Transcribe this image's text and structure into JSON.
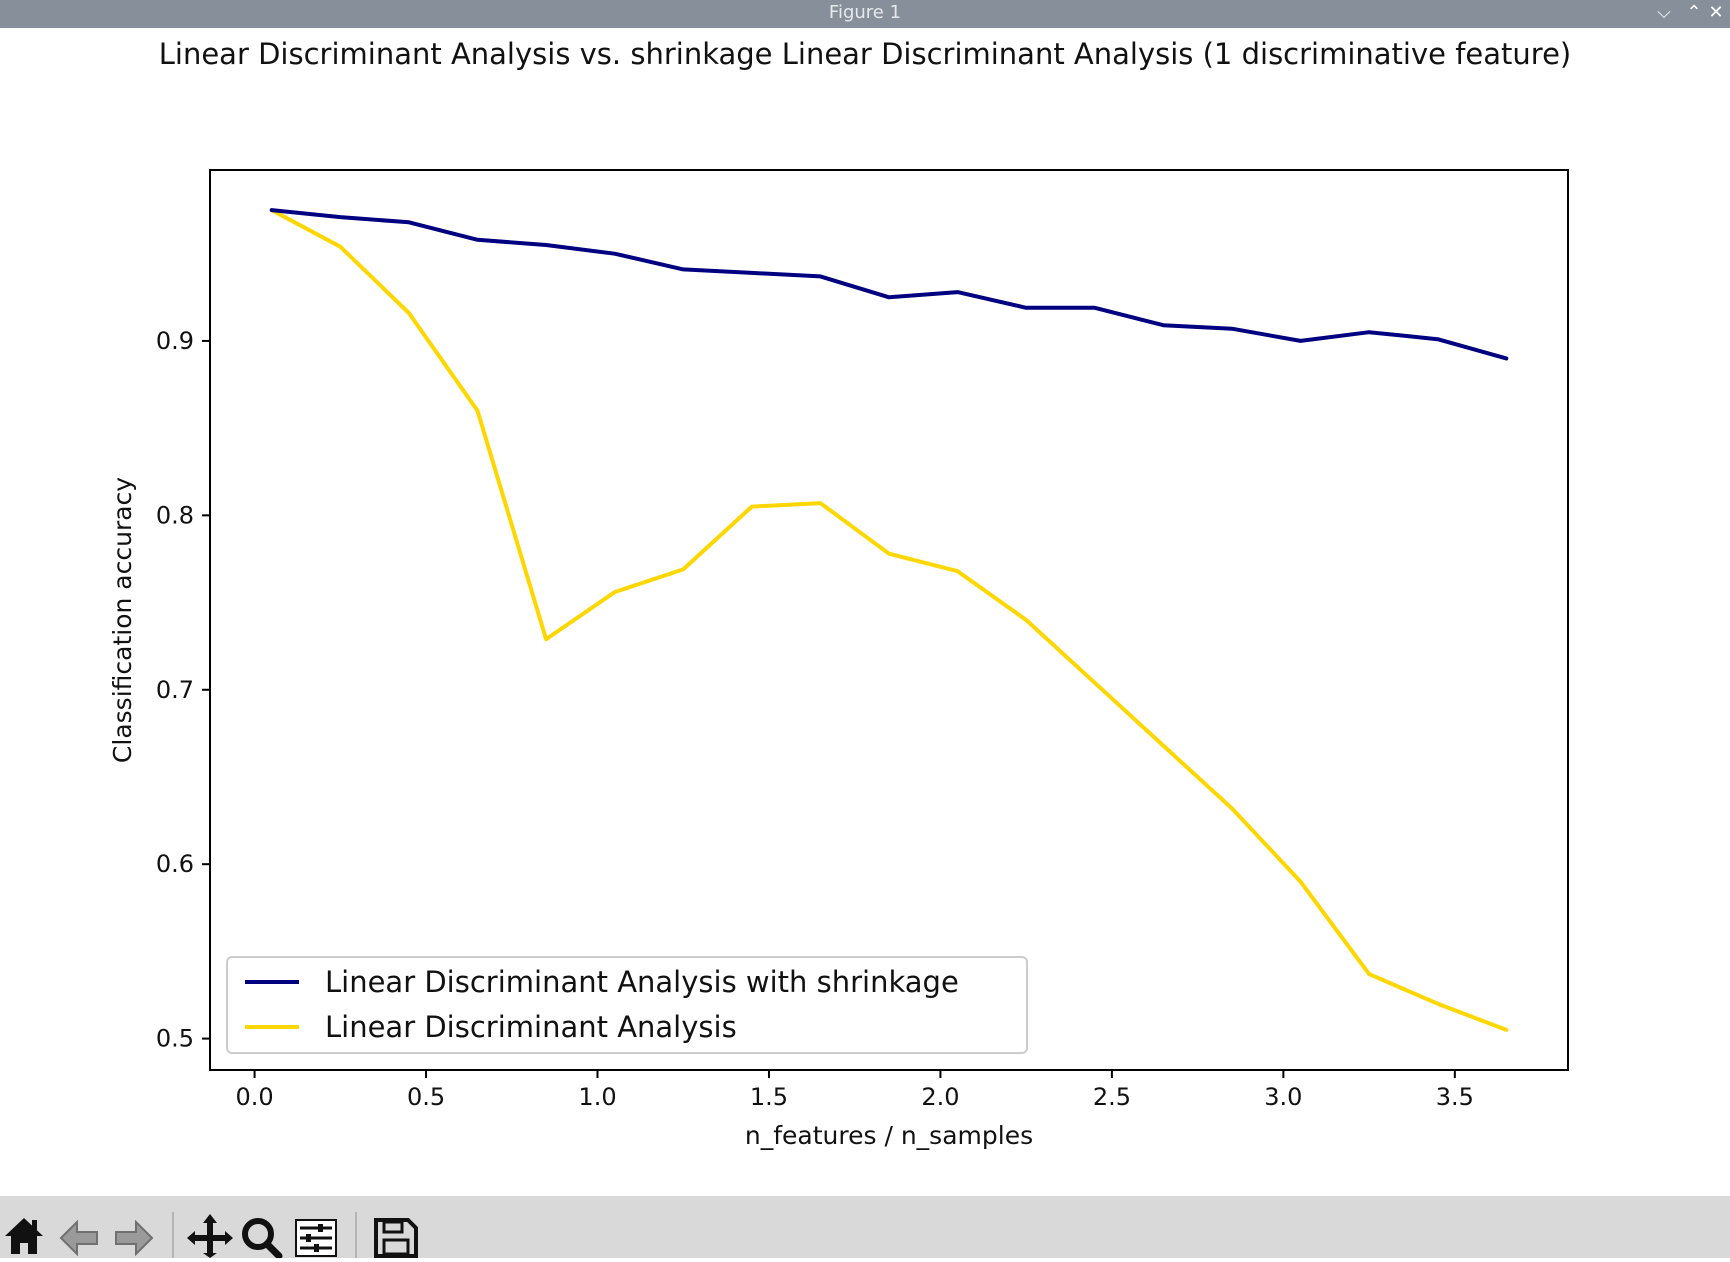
{
  "window": {
    "title": "Figure 1",
    "controls": [
      "minimize",
      "maximize",
      "close"
    ]
  },
  "toolbar": {
    "buttons": [
      {
        "name": "home-button",
        "icon": "home-icon"
      },
      {
        "name": "back-button",
        "icon": "arrow-left-icon"
      },
      {
        "name": "forward-button",
        "icon": "arrow-right-icon"
      },
      {
        "name": "pan-button",
        "icon": "move-icon"
      },
      {
        "name": "zoom-button",
        "icon": "magnifier-icon"
      },
      {
        "name": "configure-subplots-button",
        "icon": "sliders-icon"
      },
      {
        "name": "save-button",
        "icon": "floppy-icon"
      }
    ]
  },
  "chart_data": {
    "type": "line",
    "title": "Linear Discriminant Analysis vs. shrinkage Linear Discriminant Analysis (1 discriminative feature)",
    "xlabel": "n_features / n_samples",
    "ylabel": "Classification accuracy",
    "xlim": [
      -0.13,
      3.83
    ],
    "ylim": [
      0.482,
      0.998
    ],
    "xticks": [
      0.0,
      0.5,
      1.0,
      1.5,
      2.0,
      2.5,
      3.0,
      3.5
    ],
    "xtick_labels": [
      "0.0",
      "0.5",
      "1.0",
      "1.5",
      "2.0",
      "2.5",
      "3.0",
      "3.5"
    ],
    "yticks": [
      0.5,
      0.6,
      0.7,
      0.8,
      0.9
    ],
    "ytick_labels": [
      "0.5",
      "0.6",
      "0.7",
      "0.8",
      "0.9"
    ],
    "grid": false,
    "legend_position": "lower-left",
    "x": [
      0.05,
      0.25,
      0.45,
      0.65,
      0.85,
      1.05,
      1.25,
      1.45,
      1.65,
      1.85,
      2.05,
      2.25,
      2.45,
      2.65,
      2.85,
      3.05,
      3.25,
      3.45,
      3.65
    ],
    "series": [
      {
        "name": "Linear Discriminant Analysis with shrinkage",
        "color": "#000080",
        "values": [
          0.975,
          0.971,
          0.968,
          0.958,
          0.955,
          0.95,
          0.941,
          0.939,
          0.937,
          0.925,
          0.928,
          0.919,
          0.919,
          0.909,
          0.907,
          0.9,
          0.905,
          0.901,
          0.89
        ]
      },
      {
        "name": "Linear Discriminant Analysis",
        "color": "#ffd700",
        "values": [
          0.975,
          0.954,
          0.916,
          0.86,
          0.729,
          0.756,
          0.769,
          0.805,
          0.807,
          0.778,
          0.768,
          0.74,
          0.704,
          0.668,
          0.632,
          0.59,
          0.537,
          0.52,
          0.505
        ]
      }
    ]
  }
}
